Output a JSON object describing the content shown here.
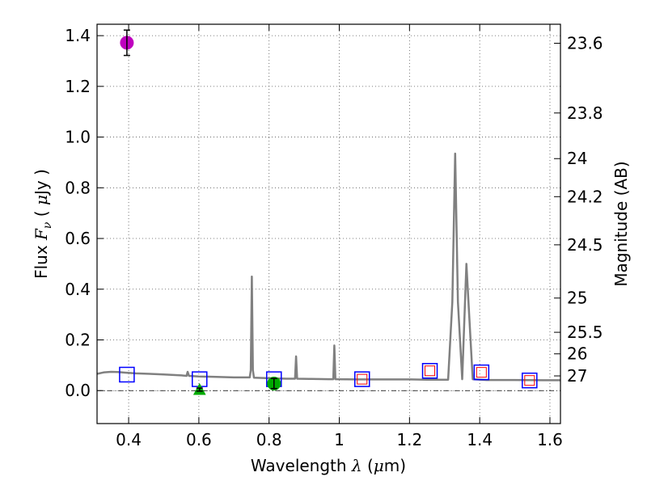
{
  "chart_data": {
    "type": "scatter",
    "xlabel": "Wavelength  λ (μm)",
    "xlabel_parts": {
      "pre": "Wavelength  ",
      "sym": "λ",
      "post": " (",
      "mu": "μ",
      "unit": "m)"
    },
    "ylabel": "Flux  Fν  ( μJy )",
    "ylabel_parts": {
      "pre": "Flux  ",
      "sym": "F",
      "sub": "ν",
      "mid": "  ( ",
      "mu": "μ",
      "unit": "Jy )"
    },
    "y2label": "Magnitude (AB)",
    "xlim": [
      0.31,
      1.63
    ],
    "ylim": [
      -0.13,
      1.445
    ],
    "grid": true,
    "xticks": [
      0.4,
      0.6,
      0.8,
      1.0,
      1.2,
      1.4,
      1.6
    ],
    "xtick_labels": [
      "0.4",
      "0.6",
      "0.8",
      "1",
      "1.2",
      "1.4",
      "1.6"
    ],
    "yticks": [
      0.0,
      0.2,
      0.4,
      0.6,
      0.8,
      1.0,
      1.2,
      1.4
    ],
    "ytick_labels": [
      "0.0",
      "0.2",
      "0.4",
      "0.6",
      "0.8",
      "1.0",
      "1.2",
      "1.4"
    ],
    "mag_ticks": [
      {
        "flux": 1.37,
        "label": "23.6"
      },
      {
        "flux": 1.095,
        "label": "23.8"
      },
      {
        "flux": 0.915,
        "label": "24"
      },
      {
        "flux": 0.765,
        "label": "24.2"
      },
      {
        "flux": 0.575,
        "label": "24.5"
      },
      {
        "flux": 0.365,
        "label": "25"
      },
      {
        "flux": 0.23,
        "label": "25.5"
      },
      {
        "flux": 0.145,
        "label": "26"
      },
      {
        "flux": 0.058,
        "label": "27"
      }
    ],
    "sed_model": {
      "name": "SED model",
      "color": "#808080",
      "points": [
        [
          0.31,
          0.066
        ],
        [
          0.33,
          0.072
        ],
        [
          0.35,
          0.074
        ],
        [
          0.37,
          0.073
        ],
        [
          0.39,
          0.071
        ],
        [
          0.42,
          0.068
        ],
        [
          0.46,
          0.066
        ],
        [
          0.5,
          0.064
        ],
        [
          0.55,
          0.06
        ],
        [
          0.565,
          0.058
        ],
        [
          0.568,
          0.074
        ],
        [
          0.572,
          0.058
        ],
        [
          0.6,
          0.056
        ],
        [
          0.65,
          0.054
        ],
        [
          0.7,
          0.052
        ],
        [
          0.745,
          0.052
        ],
        [
          0.748,
          0.08
        ],
        [
          0.751,
          0.45
        ],
        [
          0.754,
          0.08
        ],
        [
          0.757,
          0.051
        ],
        [
          0.8,
          0.049
        ],
        [
          0.85,
          0.047
        ],
        [
          0.874,
          0.047
        ],
        [
          0.877,
          0.135
        ],
        [
          0.88,
          0.047
        ],
        [
          0.92,
          0.046
        ],
        [
          0.97,
          0.045
        ],
        [
          0.983,
          0.045
        ],
        [
          0.986,
          0.178
        ],
        [
          0.989,
          0.045
        ],
        [
          1.05,
          0.044
        ],
        [
          1.1,
          0.044
        ],
        [
          1.15,
          0.044
        ],
        [
          1.2,
          0.044
        ],
        [
          1.25,
          0.043
        ],
        [
          1.31,
          0.043
        ],
        [
          1.322,
          0.35
        ],
        [
          1.33,
          0.935
        ],
        [
          1.338,
          0.35
        ],
        [
          1.35,
          0.045
        ],
        [
          1.362,
          0.5
        ],
        [
          1.37,
          0.3
        ],
        [
          1.38,
          0.045
        ],
        [
          1.42,
          0.042
        ],
        [
          1.5,
          0.042
        ],
        [
          1.58,
          0.041
        ],
        [
          1.63,
          0.041
        ]
      ]
    },
    "model_fluxes": [
      {
        "x": 0.395,
        "y": 0.063
      },
      {
        "x": 0.602,
        "y": 0.045
      },
      {
        "x": 0.814,
        "y": 0.045
      },
      {
        "x": 1.065,
        "y": 0.045
      },
      {
        "x": 1.258,
        "y": 0.078
      },
      {
        "x": 1.405,
        "y": 0.072
      },
      {
        "x": 1.542,
        "y": 0.04
      }
    ],
    "observed_red_squares": [
      {
        "x": 1.065,
        "y": 0.045
      },
      {
        "x": 1.258,
        "y": 0.078
      },
      {
        "x": 1.405,
        "y": 0.072
      },
      {
        "x": 1.542,
        "y": 0.04
      }
    ],
    "observed_points": [
      {
        "name": "magenta-point",
        "x": 0.395,
        "y": 1.372,
        "err": 0.05,
        "color": "#bf00bf",
        "marker": "circle"
      },
      {
        "name": "green-circle-point",
        "x": 0.814,
        "y": 0.028,
        "err": 0.02,
        "color": "#00aa00",
        "marker": "circle"
      },
      {
        "name": "green-triangle-point",
        "x": 0.602,
        "y": 0.004,
        "err": 0.006,
        "color": "#00aa00",
        "marker": "triangle"
      }
    ],
    "colors": {
      "model_square": "#0000ff",
      "observed_square": "#ff0000",
      "grid": "#555555",
      "axis": "#000000"
    }
  }
}
